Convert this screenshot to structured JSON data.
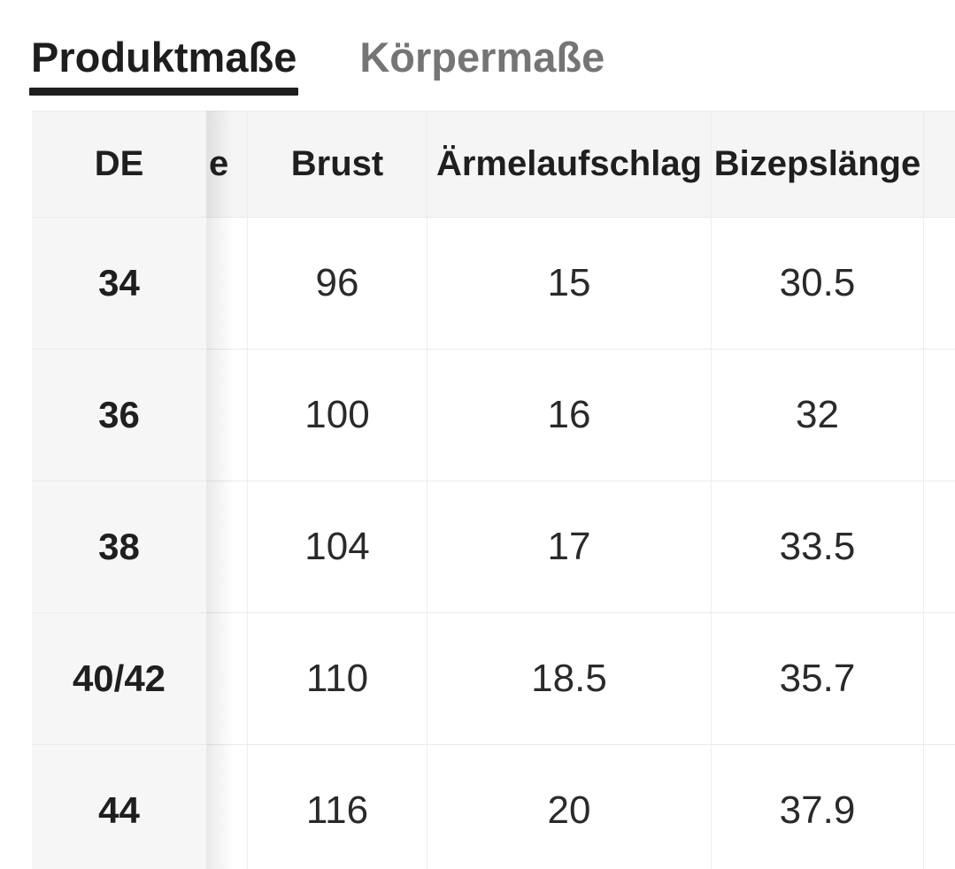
{
  "tabs": {
    "items": [
      {
        "label": "Produktmaße",
        "active": true
      },
      {
        "label": "Körpermaße",
        "active": false
      }
    ]
  },
  "table": {
    "columns": [
      {
        "key": "de",
        "label": "DE",
        "sticky": true
      },
      {
        "key": "hidden_scrolled_column",
        "label_fragment": "e"
      },
      {
        "key": "brust",
        "label": "Brust"
      },
      {
        "key": "aermelaufschlag",
        "label": "Ärmelaufschlag"
      },
      {
        "key": "bizepslaenge",
        "label": "Bizepslänge"
      },
      {
        "key": "cutoff_right_column",
        "label": ""
      }
    ],
    "rows": [
      {
        "de": "34",
        "brust": "96",
        "aermelaufschlag": "15",
        "bizepslaenge": "30.5"
      },
      {
        "de": "36",
        "brust": "100",
        "aermelaufschlag": "16",
        "bizepslaenge": "32"
      },
      {
        "de": "38",
        "brust": "104",
        "aermelaufschlag": "17",
        "bizepslaenge": "33.5"
      },
      {
        "de": "40/42",
        "brust": "110",
        "aermelaufschlag": "18.5",
        "bizepslaenge": "35.7"
      },
      {
        "de": "44",
        "brust": "116",
        "aermelaufschlag": "20",
        "bizepslaenge": "37.9"
      }
    ]
  },
  "colors": {
    "active_tab_text": "#1e1e1e",
    "active_tab_underline": "#1f1f1f",
    "inactive_tab_text": "#757575",
    "header_bg": "#f5f5f5",
    "sticky_col_bg": "#f5f6f5",
    "row_border": "#eaeaea",
    "col_border": "#ededed",
    "data_text": "#2a2a2a"
  }
}
